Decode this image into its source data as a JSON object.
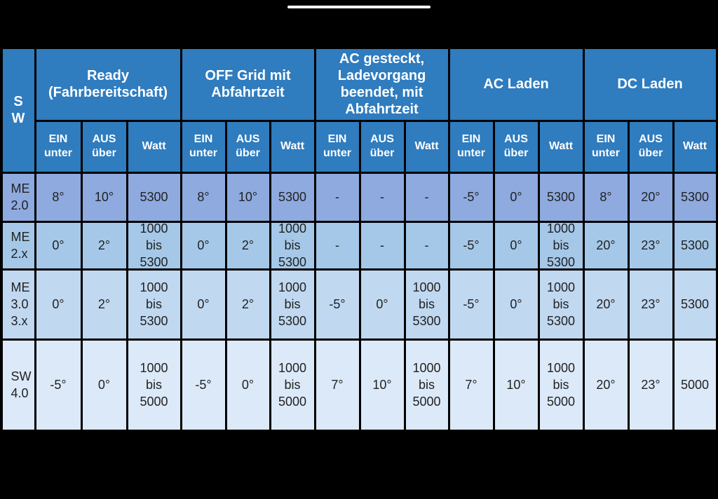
{
  "table": {
    "corner_label": "S\nW",
    "groups": [
      {
        "label": "Ready\n(Fahrbereitschaft)"
      },
      {
        "label": "OFF Grid mit\nAbfahrtzeit"
      },
      {
        "label": "AC gesteckt,\nLadevorgang\nbeendet, mit\nAbfahrtzeit"
      },
      {
        "label": "AC Laden"
      },
      {
        "label": "DC Laden"
      }
    ],
    "sub_headers": [
      "EIN\nunter",
      "AUS\nüber",
      "Watt"
    ],
    "rows": [
      {
        "label": "ME\n2.0",
        "cells": [
          "8°",
          "10°",
          "5300",
          "8°",
          "10°",
          "5300",
          "-",
          "-",
          "-",
          "-5°",
          "0°",
          "5300",
          "8°",
          "20°",
          "5300"
        ]
      },
      {
        "label": "ME\n2.x",
        "cells": [
          "0°",
          "2°",
          "1000\nbis\n5300",
          "0°",
          "2°",
          "1000\nbis\n5300",
          "-",
          "-",
          "-",
          "-5°",
          "0°",
          "1000\nbis\n5300",
          "20°",
          "23°",
          "5300"
        ]
      },
      {
        "label": "ME\n3.0\n3.x",
        "cells": [
          "0°",
          "2°",
          "1000\nbis\n5300",
          "0°",
          "2°",
          "1000\nbis\n5300",
          "-5°",
          "0°",
          "1000\nbis\n5300",
          "-5°",
          "0°",
          "1000\nbis\n5300",
          "20°",
          "23°",
          "5300"
        ]
      },
      {
        "label": "SW\n4.0",
        "cells": [
          "-5°",
          "0°",
          "1000\nbis\n5000",
          "-5°",
          "0°",
          "1000\nbis\n5000",
          "7°",
          "10°",
          "1000\nbis\n5000",
          "7°",
          "10°",
          "1000\nbis\n5000",
          "20°",
          "23°",
          "5000"
        ]
      }
    ]
  }
}
